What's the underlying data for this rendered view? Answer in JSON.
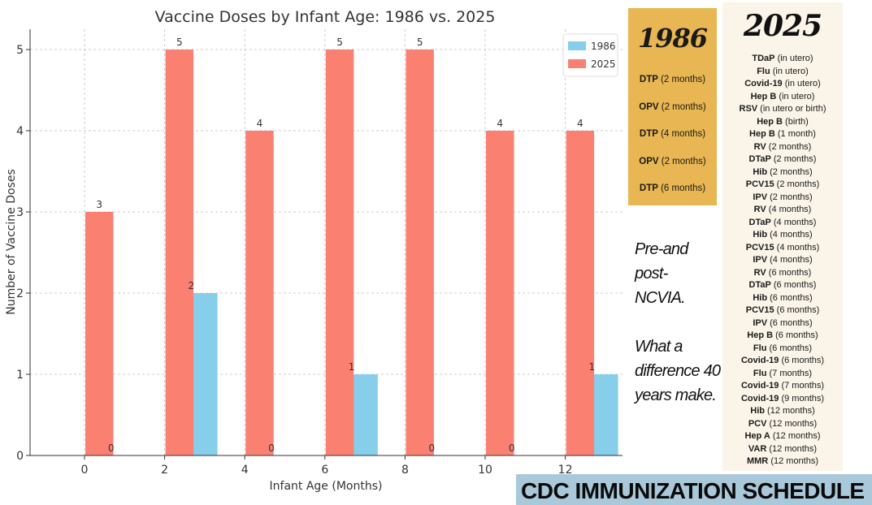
{
  "chart_data": {
    "type": "bar",
    "title": "Vaccine Doses by Infant Age: 1986 vs. 2025",
    "xlabel": "Infant Age (Months)",
    "ylabel": "Number of Vaccine Doses",
    "categories": [
      "0",
      "2",
      "4",
      "6",
      "8",
      "10",
      "12"
    ],
    "series": [
      {
        "name": "1986",
        "color": "#87ceeb",
        "values": [
          0,
          2,
          0,
          1,
          0,
          0,
          1
        ]
      },
      {
        "name": "2025",
        "color": "#fa8072",
        "values": [
          3,
          5,
          4,
          5,
          5,
          4,
          4
        ]
      }
    ],
    "ylim": [
      0,
      5.25
    ],
    "yticks": [
      0,
      1,
      2,
      3,
      4,
      5
    ],
    "grid": true,
    "legend_position": "top-right"
  },
  "panel_1986": {
    "year": "1986",
    "items": [
      {
        "vaccine": "DTP",
        "timing": "(2 months)"
      },
      {
        "vaccine": "OPV",
        "timing": "(2 months)"
      },
      {
        "vaccine": "DTP",
        "timing": "(4 months)"
      },
      {
        "vaccine": "OPV",
        "timing": "(2 months)"
      },
      {
        "vaccine": "DTP",
        "timing": "(6 months)"
      }
    ]
  },
  "panel_2025": {
    "year": "2025",
    "items": [
      {
        "vaccine": "TDaP",
        "timing": "(in utero)"
      },
      {
        "vaccine": "Flu",
        "timing": "(in utero)"
      },
      {
        "vaccine": "Covid-19",
        "timing": "(in utero)"
      },
      {
        "vaccine": "Hep B",
        "timing": "(in utero)"
      },
      {
        "vaccine": "RSV",
        "timing": "(in utero or birth)"
      },
      {
        "vaccine": "Hep B",
        "timing": "(birth)"
      },
      {
        "vaccine": "Hep B",
        "timing": "(1 month)"
      },
      {
        "vaccine": "RV",
        "timing": "(2 months)"
      },
      {
        "vaccine": "DTaP",
        "timing": "(2 months)"
      },
      {
        "vaccine": "Hib",
        "timing": "(2 months)"
      },
      {
        "vaccine": "PCV15",
        "timing": "(2 months)"
      },
      {
        "vaccine": "IPV",
        "timing": "(2 months)"
      },
      {
        "vaccine": "RV",
        "timing": "(4 months)"
      },
      {
        "vaccine": "DTaP",
        "timing": "(4 months)"
      },
      {
        "vaccine": "Hib",
        "timing": "(4 months)"
      },
      {
        "vaccine": "PCV15",
        "timing": "(4 months)"
      },
      {
        "vaccine": "IPV",
        "timing": "(4 months)"
      },
      {
        "vaccine": "RV",
        "timing": "(6 months)"
      },
      {
        "vaccine": "DTaP",
        "timing": "(6 months)"
      },
      {
        "vaccine": "Hib",
        "timing": "(6 months)"
      },
      {
        "vaccine": "PCV15",
        "timing": "(6 months)"
      },
      {
        "vaccine": "IPV",
        "timing": "(6 months)"
      },
      {
        "vaccine": "Hep B",
        "timing": "(6 months)"
      },
      {
        "vaccine": "Flu",
        "timing": "(6 months)"
      },
      {
        "vaccine": "Covid-19",
        "timing": "(6 months)"
      },
      {
        "vaccine": "Flu",
        "timing": "(7 months)"
      },
      {
        "vaccine": "Covid-19",
        "timing": "(7 months)"
      },
      {
        "vaccine": "Covid-19",
        "timing": "(9 months)"
      },
      {
        "vaccine": "Hib",
        "timing": "(12 months)"
      },
      {
        "vaccine": "PCV",
        "timing": "(12 months)"
      },
      {
        "vaccine": "Hep A",
        "timing": "(12 months)"
      },
      {
        "vaccine": "VAR",
        "timing": "(12 months)"
      },
      {
        "vaccine": "MMR",
        "timing": "(12 months)"
      }
    ]
  },
  "caption": {
    "line1": "Pre-and post-",
    "line2": "NCVIA.",
    "line3": "What a",
    "line4": "difference 40",
    "line5": "years make."
  },
  "banner": {
    "text": "CDC IMMUNIZATION SCHEDULE"
  }
}
